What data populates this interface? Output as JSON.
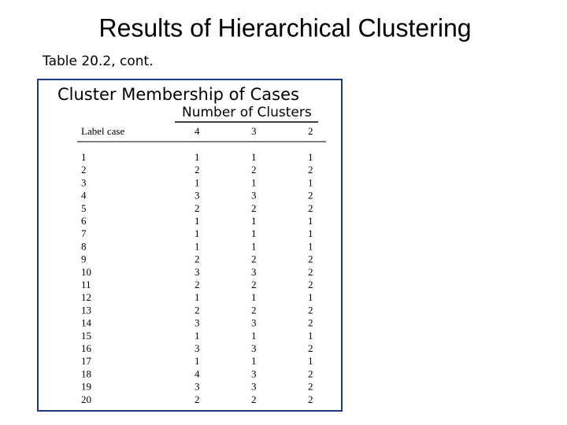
{
  "header": {
    "title": "Results of Hierarchical Clustering",
    "subtitle": "Table 20.2, cont."
  },
  "table": {
    "title": "Cluster Membership of Cases",
    "group_header": "Number of Clusters",
    "columns": [
      "Label case",
      "4",
      "3",
      "2"
    ],
    "rows": [
      [
        1,
        1,
        1,
        1
      ],
      [
        2,
        2,
        2,
        2
      ],
      [
        3,
        1,
        1,
        1
      ],
      [
        4,
        3,
        3,
        2
      ],
      [
        5,
        2,
        2,
        2
      ],
      [
        6,
        1,
        1,
        1
      ],
      [
        7,
        1,
        1,
        1
      ],
      [
        8,
        1,
        1,
        1
      ],
      [
        9,
        2,
        2,
        2
      ],
      [
        10,
        3,
        3,
        2
      ],
      [
        11,
        2,
        2,
        2
      ],
      [
        12,
        1,
        1,
        1
      ],
      [
        13,
        2,
        2,
        2
      ],
      [
        14,
        3,
        3,
        2
      ],
      [
        15,
        1,
        1,
        1
      ],
      [
        16,
        3,
        3,
        2
      ],
      [
        17,
        1,
        1,
        1
      ],
      [
        18,
        4,
        3,
        2
      ],
      [
        19,
        3,
        3,
        2
      ],
      [
        20,
        2,
        2,
        2
      ]
    ]
  }
}
